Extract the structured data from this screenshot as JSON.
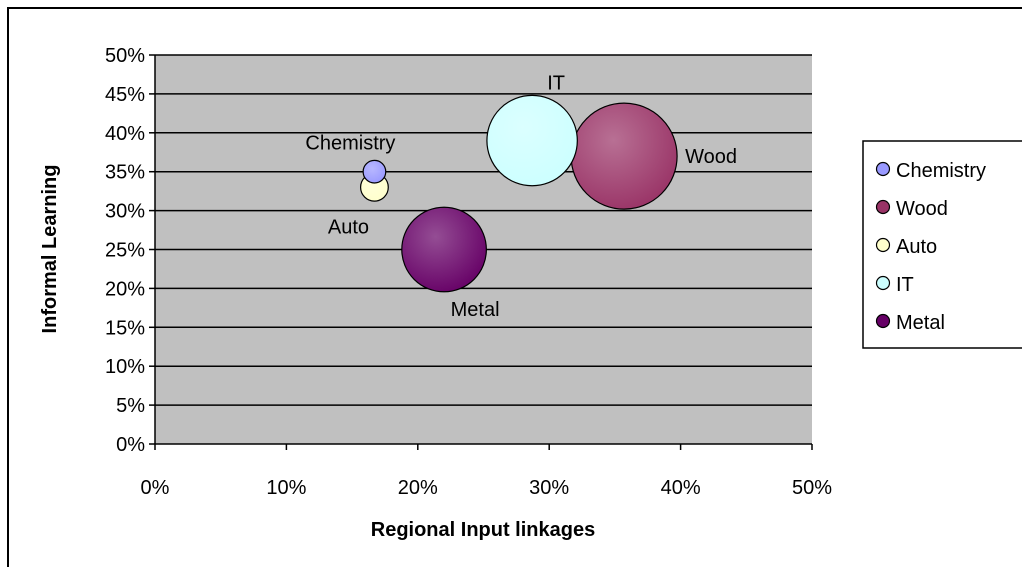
{
  "chart_data": {
    "type": "bubble",
    "xlabel": "Regional Input linkages",
    "ylabel": "Informal Learning",
    "xlim": [
      0,
      0.5
    ],
    "ylim": [
      0,
      0.5
    ],
    "x_ticks": [
      "0%",
      "10%",
      "20%",
      "30%",
      "40%",
      "50%"
    ],
    "y_ticks": [
      "0%",
      "5%",
      "10%",
      "15%",
      "20%",
      "25%",
      "30%",
      "35%",
      "40%",
      "45%",
      "50%"
    ],
    "grid": "horizontal",
    "legend_position": "right",
    "plot_background": "#c0c0c0",
    "series": [
      {
        "name": "Chemistry",
        "x": 0.167,
        "y": 0.35,
        "size": 1.0,
        "color": "#9999ff",
        "label": "Chemistry"
      },
      {
        "name": "Wood",
        "x": 0.357,
        "y": 0.37,
        "size": 22.0,
        "color": "#993366",
        "label": "Wood"
      },
      {
        "name": "Auto",
        "x": 0.167,
        "y": 0.33,
        "size": 1.5,
        "color": "#ffffcc",
        "label": "Auto"
      },
      {
        "name": "IT",
        "x": 0.287,
        "y": 0.39,
        "size": 16.0,
        "color": "#ccffff",
        "label": "IT"
      },
      {
        "name": "Metal",
        "x": 0.22,
        "y": 0.25,
        "size": 14.0,
        "color": "#660066",
        "label": "Metal"
      }
    ]
  }
}
